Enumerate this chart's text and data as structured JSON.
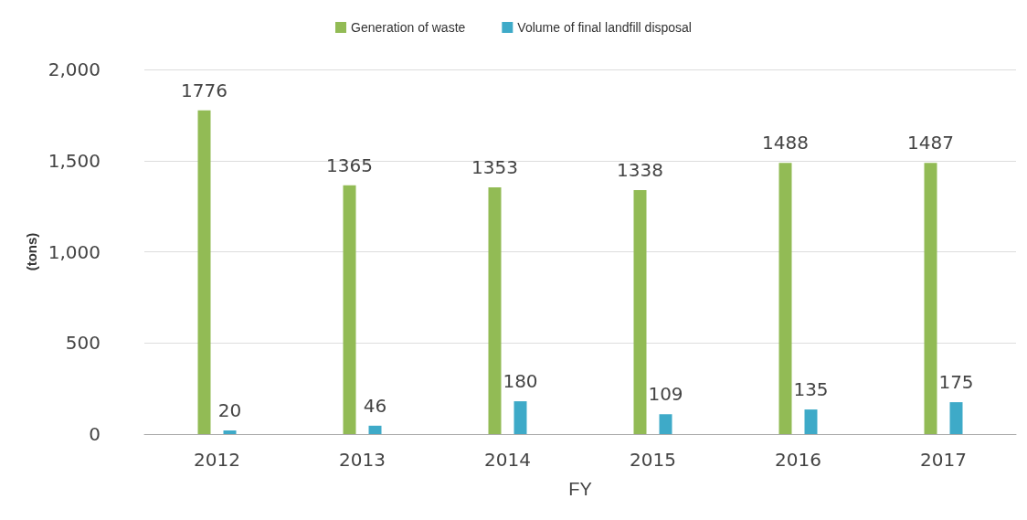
{
  "chart_data": {
    "type": "bar",
    "xlabel": "FY",
    "ylabel": "(tons)",
    "categories": [
      "2012",
      "2013",
      "2014",
      "2015",
      "2016",
      "2017"
    ],
    "series": [
      {
        "name": "Generation of waste",
        "color": "#92bb55",
        "values": [
          1776,
          1365,
          1353,
          1338,
          1488,
          1487
        ]
      },
      {
        "name": "Volume of final landfill disposal",
        "color": "#3eaac8",
        "values": [
          20,
          46,
          180,
          109,
          135,
          175
        ]
      }
    ],
    "ylim": [
      0,
      2000
    ],
    "yticks": [
      {
        "value": 0,
        "label": "0"
      },
      {
        "value": 500,
        "label": "500"
      },
      {
        "value": 1000,
        "label": "1,000"
      },
      {
        "value": 1500,
        "label": "1,500"
      },
      {
        "value": 2000,
        "label": "2,000"
      }
    ],
    "grid": "y",
    "legend": "top",
    "data_labels": true
  }
}
